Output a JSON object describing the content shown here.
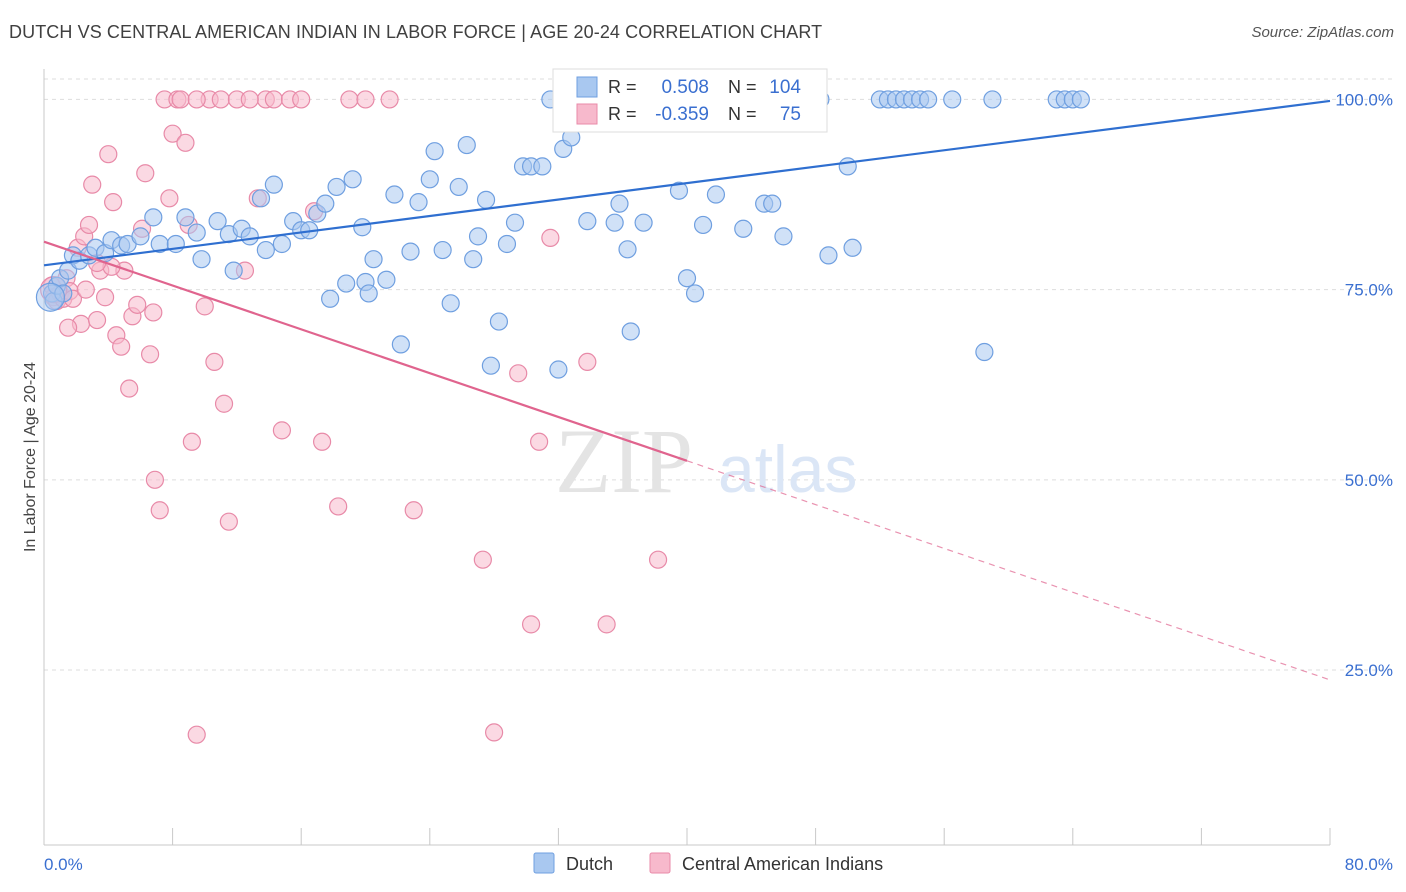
{
  "header": {
    "title": "DUTCH VS CENTRAL AMERICAN INDIAN IN LABOR FORCE | AGE 20-24 CORRELATION CHART",
    "source": "Source: ZipAtlas.com"
  },
  "watermark": {
    "zip": "ZIP",
    "atlas": "atlas"
  },
  "colors": {
    "dutch_fill": "#a9c8f0",
    "dutch_stroke": "#6f9fe0",
    "dutch_line": "#2f6fd0",
    "cai_fill": "#f7b9cc",
    "cai_stroke": "#e88aa8",
    "cai_line": "#e0648e",
    "value_text": "#3a6fd0",
    "grid": "#dddddd"
  },
  "legend": {
    "rows": [
      {
        "r_label": "R =",
        "r_value": "0.508",
        "n_label": "N =",
        "n_value": "104"
      },
      {
        "r_label": "R =",
        "r_value": "-0.359",
        "n_label": "N =",
        "n_value": "75"
      }
    ]
  },
  "bottom_legend": {
    "dutch": "Dutch",
    "cai": "Central American Indians"
  },
  "chart_data": {
    "type": "scatter",
    "title": "DUTCH VS CENTRAL AMERICAN INDIAN IN LABOR FORCE | AGE 20-24 CORRELATION CHART",
    "ylabel": "In Labor Force | Age 20-24",
    "xlabel": "",
    "xlim": [
      0,
      80
    ],
    "ylim": [
      2,
      104
    ],
    "x_tick_labels": [
      "0.0%",
      "80.0%"
    ],
    "y_tick_labels": [
      "100.0%",
      "75.0%",
      "50.0%",
      "25.0%"
    ],
    "y_ticks": [
      100,
      75,
      50,
      25
    ],
    "grid": true,
    "legend_position": "top-center",
    "series": [
      {
        "name": "Dutch",
        "r": 0.508,
        "n": 104,
        "trend": {
          "x0": 0,
          "y0": 78.2,
          "x1": 80,
          "y1": 99.8
        },
        "points": [
          [
            0.5,
            74.5
          ],
          [
            0.6,
            73.5
          ],
          [
            0.8,
            75.5
          ],
          [
            1,
            76.5
          ],
          [
            1.5,
            77.5
          ],
          [
            1.8,
            79.5
          ],
          [
            2.2,
            78.8
          ],
          [
            2.8,
            79.5
          ],
          [
            3.2,
            80.5
          ],
          [
            3.8,
            79.8
          ],
          [
            4.2,
            81.5
          ],
          [
            4.8,
            80.8
          ],
          [
            5.2,
            81
          ],
          [
            6,
            82
          ],
          [
            6.8,
            84.5
          ],
          [
            7.2,
            81
          ],
          [
            8.2,
            81
          ],
          [
            8.8,
            84.5
          ],
          [
            9.5,
            82.5
          ],
          [
            9.8,
            79
          ],
          [
            10.8,
            84
          ],
          [
            11.5,
            82.3
          ],
          [
            11.8,
            77.5
          ],
          [
            12.3,
            83
          ],
          [
            12.8,
            82
          ],
          [
            13.5,
            87
          ],
          [
            13.8,
            80.2
          ],
          [
            14.3,
            88.8
          ],
          [
            14.8,
            81
          ],
          [
            15.5,
            84
          ],
          [
            16,
            82.8
          ],
          [
            16.5,
            82.8
          ],
          [
            17,
            85
          ],
          [
            17.5,
            86.3
          ],
          [
            17.8,
            73.8
          ],
          [
            18.2,
            88.5
          ],
          [
            18.8,
            75.8
          ],
          [
            19.2,
            89.5
          ],
          [
            19.8,
            83.2
          ],
          [
            20,
            76
          ],
          [
            20.2,
            74.5
          ],
          [
            20.5,
            79
          ],
          [
            21.3,
            76.3
          ],
          [
            21.8,
            87.5
          ],
          [
            22.2,
            67.8
          ],
          [
            22.8,
            80
          ],
          [
            23.3,
            86.5
          ],
          [
            24,
            89.5
          ],
          [
            24.3,
            93.2
          ],
          [
            24.8,
            80.2
          ],
          [
            25.3,
            73.2
          ],
          [
            25.8,
            88.5
          ],
          [
            26.3,
            94
          ],
          [
            26.7,
            79
          ],
          [
            27,
            82
          ],
          [
            27.5,
            86.8
          ],
          [
            27.8,
            65
          ],
          [
            28.3,
            70.8
          ],
          [
            28.8,
            81
          ],
          [
            29.3,
            83.8
          ],
          [
            29.8,
            91.2
          ],
          [
            30.3,
            91.2
          ],
          [
            31,
            91.2
          ],
          [
            31.5,
            100
          ],
          [
            32,
            64.5
          ],
          [
            32.3,
            93.5
          ],
          [
            32.8,
            95
          ],
          [
            33.8,
            84
          ],
          [
            34.8,
            100
          ],
          [
            35.5,
            83.8
          ],
          [
            35.8,
            86.3
          ],
          [
            36.3,
            80.3
          ],
          [
            36.5,
            69.5
          ],
          [
            37.3,
            83.8
          ],
          [
            38.5,
            100
          ],
          [
            39.5,
            88
          ],
          [
            40,
            76.5
          ],
          [
            40.5,
            74.5
          ],
          [
            41,
            83.5
          ],
          [
            41.8,
            87.5
          ],
          [
            43.5,
            83
          ],
          [
            44,
            100
          ],
          [
            44.8,
            86.3
          ],
          [
            45.3,
            86.3
          ],
          [
            46,
            82
          ],
          [
            48.3,
            100
          ],
          [
            48.8,
            79.5
          ],
          [
            50,
            91.2
          ],
          [
            50.3,
            80.5
          ],
          [
            52,
            100
          ],
          [
            52.5,
            100
          ],
          [
            53,
            100
          ],
          [
            53.5,
            100
          ],
          [
            54,
            100
          ],
          [
            54.5,
            100
          ],
          [
            55,
            100
          ],
          [
            56.5,
            100
          ],
          [
            58.5,
            66.8
          ],
          [
            59,
            100
          ],
          [
            63,
            100
          ],
          [
            63.5,
            100
          ],
          [
            64,
            100
          ],
          [
            64.5,
            100
          ],
          [
            1.2,
            74.5
          ]
        ]
      },
      {
        "name": "Central American Indians",
        "r": -0.359,
        "n": 75,
        "trend": {
          "x0": 0,
          "y0": 81.3,
          "x1": 40,
          "y1": 52.5
        },
        "trend_dashed": {
          "x0": 40,
          "y0": 52.5,
          "x1": 80,
          "y1": 23.7
        },
        "points": [
          [
            0.5,
            75.5
          ],
          [
            0.6,
            74
          ],
          [
            0.8,
            73.5
          ],
          [
            1,
            74.5
          ],
          [
            1.2,
            73.8
          ],
          [
            1.4,
            76.5
          ],
          [
            1.6,
            74.8
          ],
          [
            1.8,
            73.8
          ],
          [
            2.1,
            80.5
          ],
          [
            2.3,
            70.5
          ],
          [
            2.5,
            82
          ],
          [
            2.8,
            83.5
          ],
          [
            3,
            88.8
          ],
          [
            3.3,
            71
          ],
          [
            3.5,
            77.5
          ],
          [
            3.8,
            74
          ],
          [
            4,
            92.8
          ],
          [
            4.3,
            86.5
          ],
          [
            4.5,
            69
          ],
          [
            4.8,
            67.5
          ],
          [
            5,
            77.5
          ],
          [
            5.3,
            62
          ],
          [
            5.5,
            71.5
          ],
          [
            5.8,
            73
          ],
          [
            6.1,
            83
          ],
          [
            6.3,
            90.3
          ],
          [
            6.6,
            66.5
          ],
          [
            6.9,
            50
          ],
          [
            7.2,
            46
          ],
          [
            7.5,
            100
          ],
          [
            7.8,
            87
          ],
          [
            8,
            95.5
          ],
          [
            8.3,
            100
          ],
          [
            8.5,
            100
          ],
          [
            8.8,
            94.3
          ],
          [
            9,
            83.5
          ],
          [
            9.2,
            55
          ],
          [
            9.5,
            16.5
          ],
          [
            10,
            72.8
          ],
          [
            10.3,
            100
          ],
          [
            10.6,
            65.5
          ],
          [
            11,
            100
          ],
          [
            11.2,
            60
          ],
          [
            11.5,
            44.5
          ],
          [
            12,
            100
          ],
          [
            12.5,
            77.5
          ],
          [
            13.3,
            87
          ],
          [
            13.8,
            100
          ],
          [
            14.3,
            100
          ],
          [
            14.8,
            56.5
          ],
          [
            15.3,
            100
          ],
          [
            16,
            100
          ],
          [
            16.8,
            85.3
          ],
          [
            17.3,
            55
          ],
          [
            18.3,
            46.5
          ],
          [
            19,
            100
          ],
          [
            20,
            100
          ],
          [
            21.5,
            100
          ],
          [
            23,
            46
          ],
          [
            27.3,
            39.5
          ],
          [
            28,
            16.8
          ],
          [
            29.5,
            64
          ],
          [
            30.3,
            31
          ],
          [
            30.8,
            55
          ],
          [
            31.5,
            81.8
          ],
          [
            33.8,
            65.5
          ],
          [
            35,
            31
          ],
          [
            38.2,
            39.5
          ],
          [
            1.5,
            70
          ],
          [
            2.6,
            75
          ],
          [
            4.2,
            78
          ],
          [
            6.8,
            72
          ],
          [
            9.5,
            100
          ],
          [
            12.8,
            100
          ],
          [
            3.3,
            78.5
          ]
        ]
      }
    ]
  }
}
